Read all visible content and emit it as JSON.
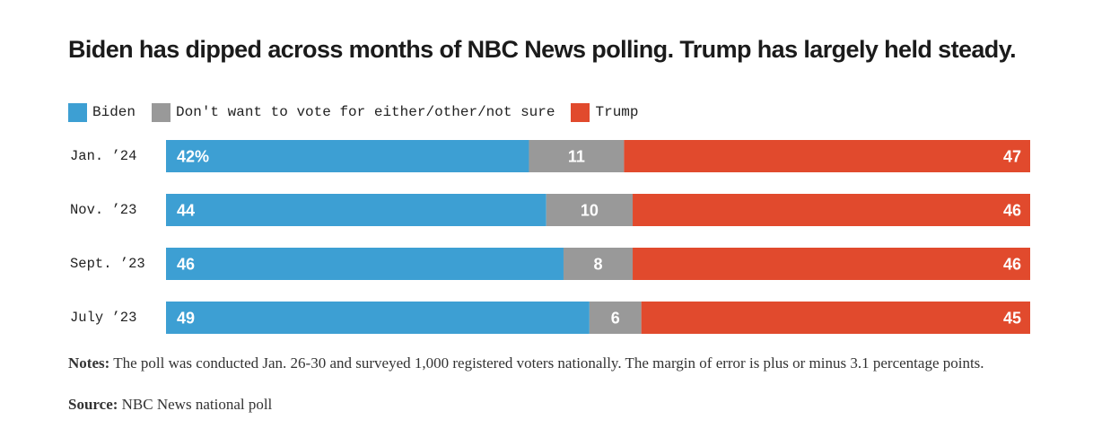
{
  "title": "Biden has dipped across months of NBC News polling. Trump has largely held steady.",
  "legend": [
    {
      "label": "Biden",
      "color": "#3d9fd3"
    },
    {
      "label": "Don't want to vote for either/other/not sure",
      "color": "#999999"
    },
    {
      "label": "Trump",
      "color": "#e14a2d"
    }
  ],
  "chart_data": {
    "type": "bar",
    "orientation": "horizontal",
    "stacked": true,
    "normalized": true,
    "categories": [
      "Jan. ’24",
      "Nov. ’23",
      "Sept. ’23",
      "July ’23"
    ],
    "series": [
      {
        "name": "Biden",
        "color": "#3d9fd3",
        "values": [
          42,
          44,
          46,
          49
        ],
        "labels": [
          "42%",
          "44",
          "46",
          "49"
        ]
      },
      {
        "name": "Don't want to vote for either/other/not sure",
        "color": "#999999",
        "values": [
          11,
          10,
          8,
          6
        ],
        "labels": [
          "11",
          "10",
          "8",
          "6"
        ]
      },
      {
        "name": "Trump",
        "color": "#e14a2d",
        "values": [
          47,
          46,
          46,
          45
        ],
        "labels": [
          "47",
          "46",
          "46",
          "45"
        ]
      }
    ],
    "xlim": [
      0,
      100
    ],
    "grid": false,
    "legend_position": "top-left"
  },
  "notes": {
    "label": "Notes:",
    "text": " The poll was conducted Jan. 26-30 and surveyed 1,000 registered voters nationally. The margin of error is plus or minus 3.1 percentage points."
  },
  "source": {
    "label": "Source:",
    "text": " NBC News national poll"
  }
}
